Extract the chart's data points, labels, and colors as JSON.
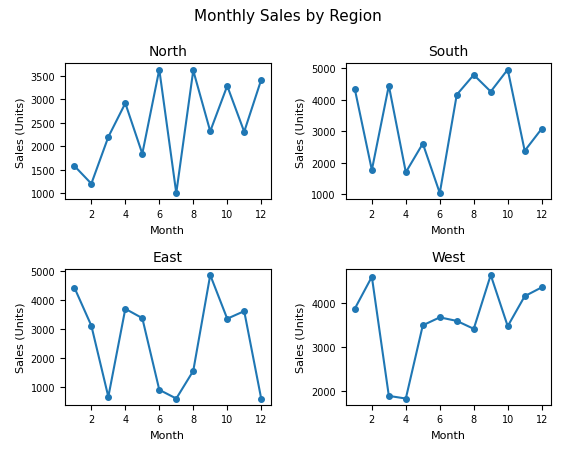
{
  "title": "Monthly Sales by Region",
  "months": [
    1,
    2,
    3,
    4,
    5,
    6,
    7,
    8,
    9,
    10,
    11,
    12
  ],
  "regions": [
    "North",
    "South",
    "East",
    "West"
  ],
  "sales": {
    "North": [
      1580,
      1200,
      2200,
      2920,
      1840,
      3640,
      1000,
      3620,
      2320,
      3290,
      2310,
      3420
    ],
    "South": [
      4330,
      1770,
      4450,
      1700,
      2610,
      1040,
      4160,
      4790,
      4260,
      4960,
      2380,
      3080
    ],
    "East": [
      4430,
      3120,
      680,
      3700,
      3380,
      920,
      620,
      1570,
      4860,
      3360,
      3620,
      620
    ],
    "West": [
      3880,
      4600,
      1900,
      1840,
      3500,
      3680,
      3600,
      3420,
      4640,
      3480,
      4160,
      4360
    ]
  },
  "line_color": "#1f77b4",
  "marker": "o",
  "xlabel": "Month",
  "ylabel": "Sales (Units)",
  "figsize": [
    5.76,
    4.56
  ],
  "dpi": 100,
  "title_fontsize": 11,
  "subplot_title_fontsize": 10,
  "axis_label_fontsize": 8,
  "tick_labelsize": 7
}
